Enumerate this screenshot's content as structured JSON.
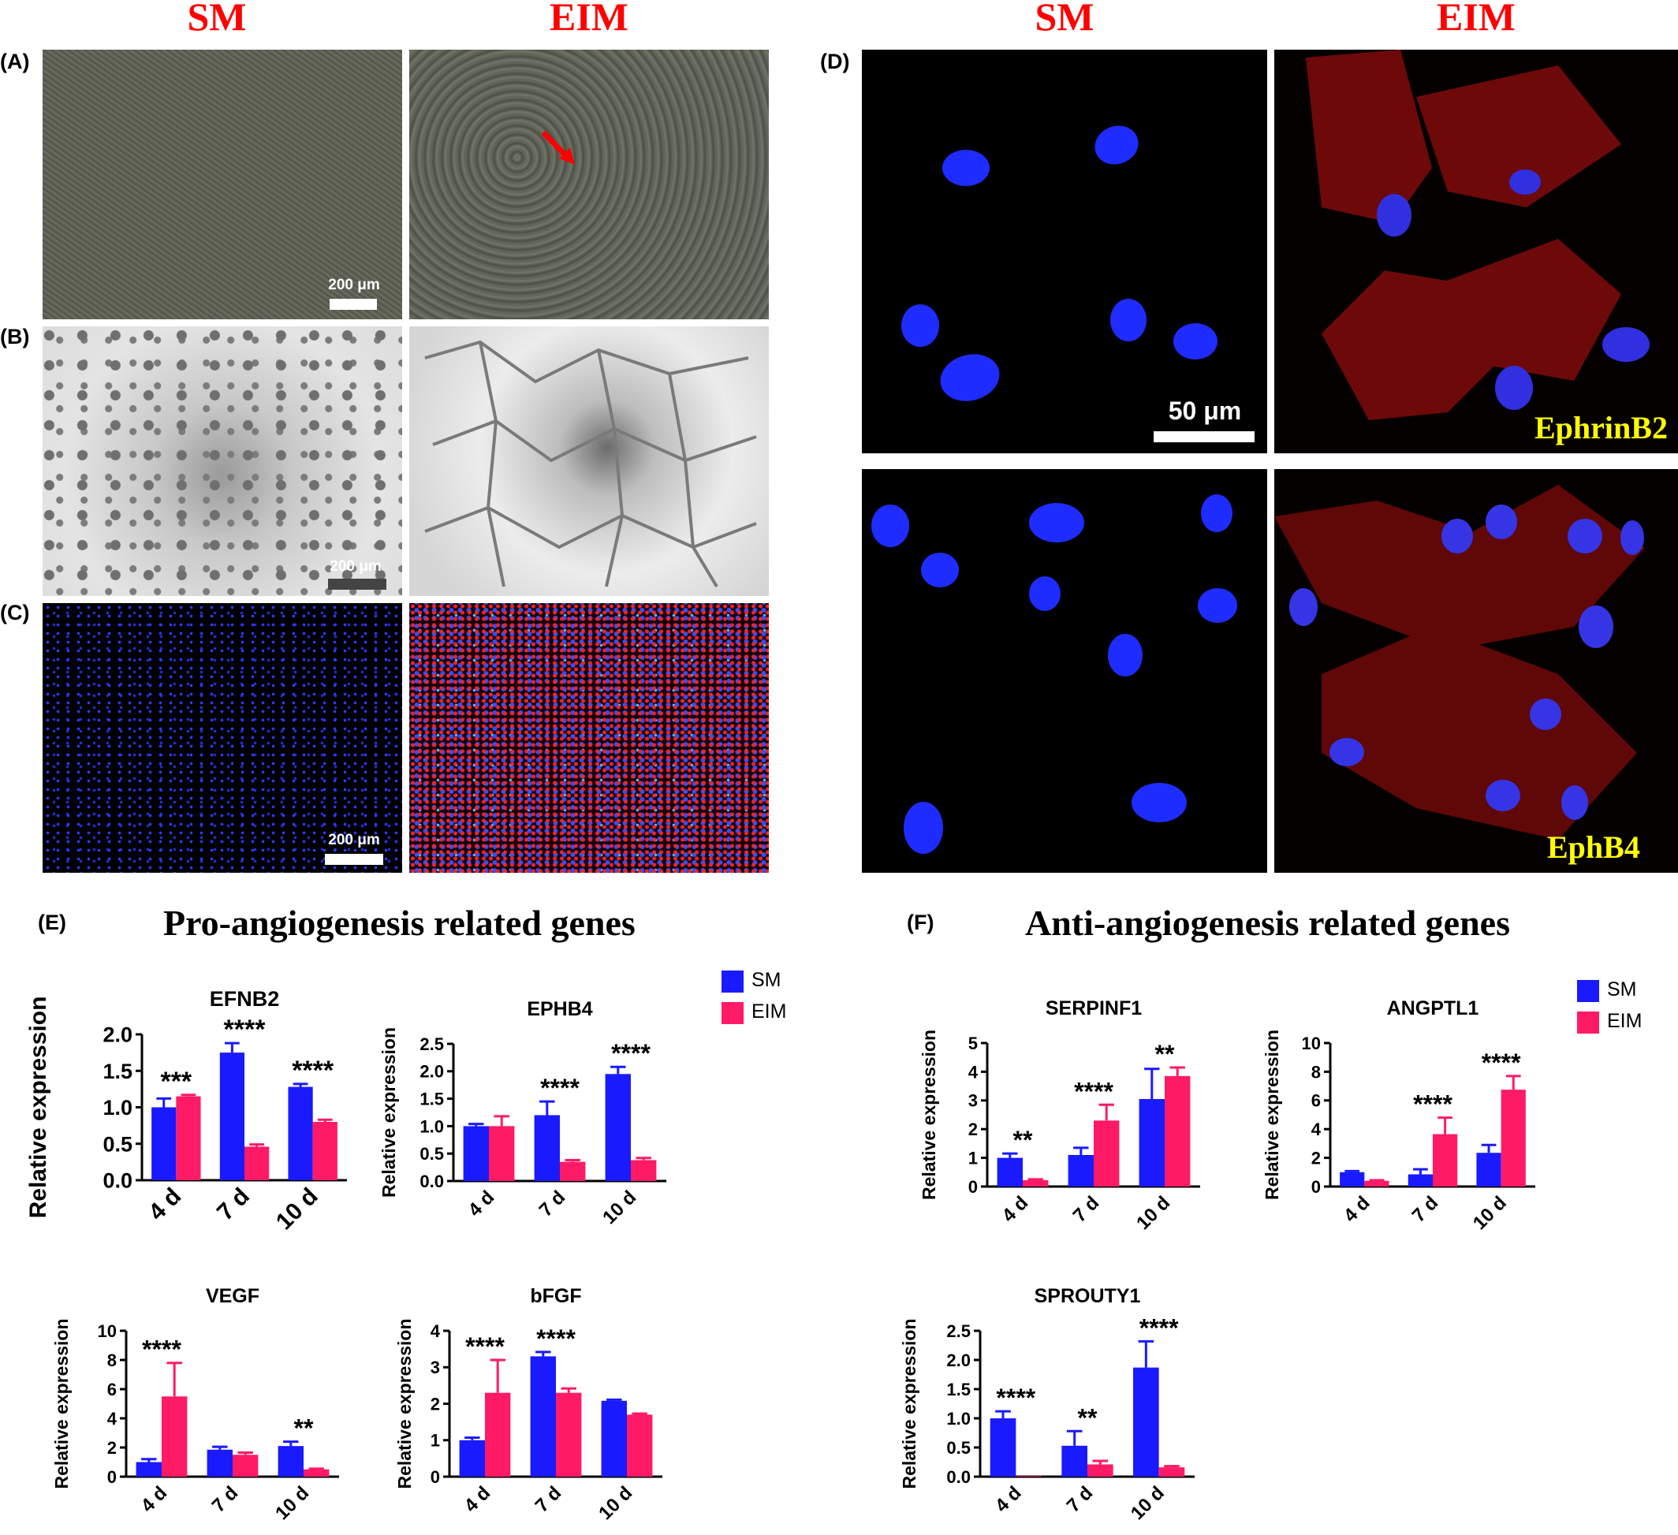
{
  "column_headers": {
    "left_sm": "SM",
    "left_eim": "EIM",
    "right_sm": "SM",
    "right_eim": "EIM"
  },
  "panel_labels": {
    "a": "(A)",
    "b": "(B)",
    "c": "(C)",
    "d": "(D)",
    "e": "(E)",
    "f": "(F)"
  },
  "scale_bars": {
    "a": "200 μm",
    "b": "200 μm",
    "c": "200 μm",
    "d": "50 μm"
  },
  "stain_labels": {
    "top": "EphrinB2",
    "bottom": "EphB4"
  },
  "section_titles": {
    "e": "Pro-angiogenesis related genes",
    "f": "Anti-angiogenesis related genes"
  },
  "legend": {
    "sm": "SM",
    "eim": "EIM"
  },
  "colors": {
    "sm": "#1a1aff",
    "eim": "#ff1a66",
    "header": "#ff0000",
    "stain_label": "#ffff00"
  },
  "chart_data": [
    {
      "type": "bar",
      "title": "EFNB2",
      "ylabel": "Relative expression",
      "categories": [
        "4 d",
        "7 d",
        "10 d"
      ],
      "ylim": [
        0,
        2.0
      ],
      "yticks": [
        "0.0",
        "0.5",
        "1.0",
        "1.5",
        "2.0"
      ],
      "series": [
        {
          "name": "SM",
          "values": [
            1.0,
            1.75,
            1.28
          ],
          "errors": [
            0.12,
            0.13,
            0.04
          ]
        },
        {
          "name": "EIM",
          "values": [
            1.15,
            0.46,
            0.8
          ],
          "errors": [
            0.02,
            0.03,
            0.03
          ]
        }
      ],
      "annotations": [
        "***",
        "****",
        "****"
      ]
    },
    {
      "type": "bar",
      "title": "EPHB4",
      "ylabel": "Relative expression",
      "categories": [
        "4 d",
        "7 d",
        "10 d"
      ],
      "ylim": [
        0,
        2.5
      ],
      "yticks": [
        "0.0",
        "0.5",
        "1.0",
        "1.5",
        "2.0",
        "2.5"
      ],
      "series": [
        {
          "name": "SM",
          "values": [
            1.0,
            1.2,
            1.95
          ],
          "errors": [
            0.04,
            0.25,
            0.13
          ]
        },
        {
          "name": "EIM",
          "values": [
            1.0,
            0.35,
            0.38
          ],
          "errors": [
            0.18,
            0.03,
            0.04
          ]
        }
      ],
      "annotations": [
        "",
        "****",
        "****"
      ]
    },
    {
      "type": "bar",
      "title": "VEGF",
      "ylabel": "Relative expression",
      "categories": [
        "4 d",
        "7 d",
        "10 d"
      ],
      "ylim": [
        0,
        10
      ],
      "yticks": [
        "0",
        "2",
        "4",
        "6",
        "8",
        "10"
      ],
      "series": [
        {
          "name": "SM",
          "values": [
            1.0,
            1.85,
            2.1
          ],
          "errors": [
            0.2,
            0.2,
            0.3
          ]
        },
        {
          "name": "EIM",
          "values": [
            5.5,
            1.5,
            0.5
          ],
          "errors": [
            2.3,
            0.15,
            0.05
          ]
        }
      ],
      "annotations": [
        "****",
        "",
        "**"
      ]
    },
    {
      "type": "bar",
      "title": "bFGF",
      "ylabel": "Relative expression",
      "categories": [
        "4 d",
        "7 d",
        "10 d"
      ],
      "ylim": [
        0,
        4
      ],
      "yticks": [
        "0",
        "1",
        "2",
        "3",
        "4"
      ],
      "series": [
        {
          "name": "SM",
          "values": [
            1.0,
            3.3,
            2.08
          ],
          "errors": [
            0.07,
            0.12,
            0.03
          ]
        },
        {
          "name": "EIM",
          "values": [
            2.3,
            2.3,
            1.7
          ],
          "errors": [
            0.9,
            0.12,
            0.03
          ]
        }
      ],
      "annotations": [
        "****",
        "****",
        ""
      ]
    },
    {
      "type": "bar",
      "title": "SERPINF1",
      "ylabel": "Relative expression",
      "categories": [
        "4 d",
        "7 d",
        "10 d"
      ],
      "ylim": [
        0,
        5
      ],
      "yticks": [
        "0",
        "1",
        "2",
        "3",
        "4",
        "5"
      ],
      "series": [
        {
          "name": "SM",
          "values": [
            1.0,
            1.1,
            3.05
          ],
          "errors": [
            0.15,
            0.25,
            1.05
          ]
        },
        {
          "name": "EIM",
          "values": [
            0.22,
            2.3,
            3.85
          ],
          "errors": [
            0.03,
            0.55,
            0.3
          ]
        }
      ],
      "annotations": [
        "**",
        "****",
        "**"
      ]
    },
    {
      "type": "bar",
      "title": "ANGPTL1",
      "ylabel": "Relative expression",
      "categories": [
        "4 d",
        "7 d",
        "10 d"
      ],
      "ylim": [
        0,
        10
      ],
      "yticks": [
        "0",
        "2",
        "4",
        "6",
        "8",
        "10"
      ],
      "series": [
        {
          "name": "SM",
          "values": [
            1.0,
            0.85,
            2.35
          ],
          "errors": [
            0.08,
            0.35,
            0.55
          ]
        },
        {
          "name": "EIM",
          "values": [
            0.4,
            3.65,
            6.75
          ],
          "errors": [
            0.04,
            1.15,
            0.95
          ]
        }
      ],
      "annotations": [
        "",
        "****",
        "****"
      ]
    },
    {
      "type": "bar",
      "title": "SPROUTY1",
      "ylabel": "Relative expression",
      "categories": [
        "4 d",
        "7 d",
        "10 d"
      ],
      "ylim": [
        0,
        2.5
      ],
      "yticks": [
        "0.0",
        "0.5",
        "1.0",
        "1.5",
        "2.0",
        "2.5"
      ],
      "series": [
        {
          "name": "SM",
          "values": [
            1.0,
            0.53,
            1.87
          ],
          "errors": [
            0.12,
            0.25,
            0.45
          ]
        },
        {
          "name": "EIM",
          "values": [
            0.01,
            0.21,
            0.16
          ],
          "errors": [
            0.0,
            0.06,
            0.02
          ]
        }
      ],
      "annotations": [
        "****",
        "**",
        "****"
      ]
    }
  ]
}
